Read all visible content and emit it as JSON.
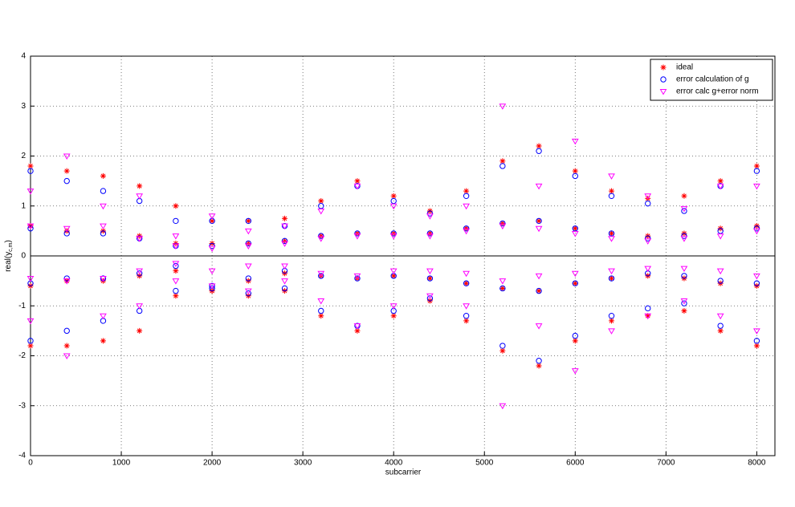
{
  "chart_data": {
    "type": "scatter",
    "xlabel": "subcarrier",
    "ylabel": {
      "text": "real(y",
      "subscript": "c,m",
      "close": ")"
    },
    "xlim": [
      0,
      8200
    ],
    "ylim": [
      -4,
      4
    ],
    "xticks": [
      0,
      1000,
      2000,
      3000,
      4000,
      5000,
      6000,
      7000,
      8000
    ],
    "yticks": [
      -4,
      -3,
      -2,
      -1,
      0,
      1,
      2,
      3,
      4
    ],
    "grid": true,
    "legend": "upper right",
    "x": [
      0,
      400,
      800,
      1200,
      1600,
      2000,
      2400,
      2800,
      3200,
      3600,
      4000,
      4400,
      4800,
      5200,
      5600,
      6000,
      6400,
      6800,
      7200,
      7600,
      8000
    ],
    "series": [
      {
        "name": "ideal",
        "color": "#ff0000",
        "marker": "star",
        "values": [
          [
            1.8,
            1.7,
            1.6,
            1.4,
            1.0,
            0.7,
            0.7,
            0.75,
            1.1,
            1.5,
            1.2,
            0.9,
            1.3,
            1.9,
            2.2,
            1.7,
            1.3,
            1.15,
            1.2,
            1.5,
            1.8
          ],
          [
            0.6,
            0.5,
            0.5,
            0.4,
            0.25,
            0.25,
            0.25,
            0.3,
            0.4,
            0.45,
            0.45,
            0.45,
            0.55,
            0.65,
            0.7,
            0.55,
            0.45,
            0.4,
            0.45,
            0.55,
            0.6
          ],
          [
            -0.6,
            -0.5,
            -0.5,
            -0.4,
            -0.3,
            -0.7,
            -0.5,
            -0.35,
            -0.4,
            -0.45,
            -0.4,
            -0.45,
            -0.55,
            -0.65,
            -0.7,
            -0.55,
            -0.45,
            -0.4,
            -0.45,
            -0.55,
            -0.6
          ],
          [
            -1.8,
            -1.8,
            -1.7,
            -1.5,
            -0.8,
            -0.7,
            -0.8,
            -0.7,
            -1.2,
            -1.5,
            -1.2,
            -0.9,
            -1.3,
            -1.9,
            -2.2,
            -1.7,
            -1.3,
            -1.2,
            -1.1,
            -1.5,
            -1.8
          ]
        ]
      },
      {
        "name": "error calculation of g",
        "color": "#0000ff",
        "marker": "circle",
        "values": [
          [
            1.7,
            1.5,
            1.3,
            1.1,
            0.7,
            0.7,
            0.7,
            0.6,
            1.0,
            1.4,
            1.1,
            0.85,
            1.2,
            1.8,
            2.1,
            1.6,
            1.2,
            1.05,
            0.9,
            1.4,
            1.7
          ],
          [
            0.55,
            0.45,
            0.45,
            0.35,
            0.2,
            0.2,
            0.25,
            0.3,
            0.4,
            0.45,
            0.45,
            0.45,
            0.55,
            0.65,
            0.7,
            0.55,
            0.45,
            0.35,
            0.4,
            0.5,
            0.55
          ],
          [
            -0.55,
            -0.45,
            -0.45,
            -0.35,
            -0.2,
            -0.6,
            -0.45,
            -0.3,
            -0.4,
            -0.45,
            -0.4,
            -0.45,
            -0.55,
            -0.65,
            -0.7,
            -0.55,
            -0.45,
            -0.35,
            -0.4,
            -0.5,
            -0.55
          ],
          [
            -1.7,
            -1.5,
            -1.3,
            -1.1,
            -0.7,
            -0.65,
            -0.75,
            -0.65,
            -1.1,
            -1.4,
            -1.1,
            -0.85,
            -1.2,
            -1.8,
            -2.1,
            -1.6,
            -1.2,
            -1.05,
            -0.95,
            -1.4,
            -1.7
          ]
        ]
      },
      {
        "name": "error calc g+error norm",
        "color": "#ff00ff",
        "marker": "triangle-down",
        "values": [
          [
            1.3,
            2.0,
            1.0,
            1.2,
            0.4,
            0.8,
            0.5,
            0.6,
            0.9,
            1.4,
            1.0,
            0.8,
            1.0,
            3.0,
            1.4,
            2.3,
            1.6,
            1.2,
            0.95,
            1.4,
            1.4
          ],
          [
            0.6,
            0.55,
            0.6,
            0.35,
            0.2,
            0.15,
            0.2,
            0.25,
            0.35,
            0.4,
            0.4,
            0.4,
            0.5,
            0.6,
            0.55,
            0.45,
            0.35,
            0.3,
            0.35,
            0.4,
            0.5
          ],
          [
            -0.45,
            -0.5,
            -0.45,
            -0.3,
            -0.15,
            -0.3,
            -0.2,
            -0.2,
            -0.35,
            -0.4,
            -0.3,
            -0.3,
            -0.35,
            -0.5,
            -0.4,
            -0.35,
            -0.3,
            -0.25,
            -0.25,
            -0.3,
            -0.4
          ],
          [
            -1.3,
            -2.0,
            -1.2,
            -1.0,
            -0.5,
            -0.6,
            -0.7,
            -0.5,
            -0.9,
            -1.4,
            -1.0,
            -0.8,
            -1.0,
            -3.0,
            -1.4,
            -2.3,
            -1.5,
            -1.2,
            -0.9,
            -1.2,
            -1.5
          ]
        ]
      }
    ]
  }
}
